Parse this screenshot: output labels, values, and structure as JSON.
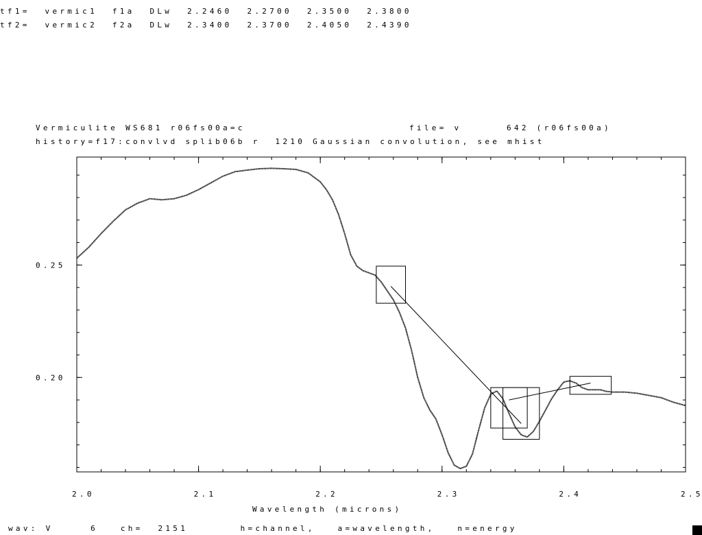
{
  "header": {
    "line1": "tf1=  vermic1  f1a  DLw  2.2460  2.2700  2.3500  2.3800",
    "line2": "tf2=  vermic2  f2a  DLw  2.3400  2.3700  2.4050  2.4390"
  },
  "title": {
    "left": "Vermiculite WS681 r06fs00a=c",
    "right": "file= v      642 (r06fs00a)",
    "history": "history=f17:convlvd splib06b r  1210 Gaussian convolution, see mhist"
  },
  "status_bar": {
    "text": "wav: V     6   ch=  2151       h=channel,   a=wavelength,   n=energy"
  },
  "chart_data": {
    "type": "line",
    "xlabel": "Wavelength (microns)",
    "ylabel": "",
    "xlim": [
      2.0,
      2.5
    ],
    "ylim": [
      0.158,
      0.298
    ],
    "xticks": [
      2.0,
      2.1,
      2.2,
      2.3,
      2.4,
      2.5
    ],
    "xtick_labels": [
      "2.0",
      "2.1",
      "2.2",
      "2.3",
      "2.4",
      "2.5"
    ],
    "yticks": [
      0.2,
      0.25
    ],
    "ytick_labels": [
      "0.20",
      "0.25"
    ],
    "grid": false,
    "series": [
      {
        "x": [
          2.0,
          2.01,
          2.02,
          2.03,
          2.04,
          2.05,
          2.06,
          2.07,
          2.08,
          2.09,
          2.1,
          2.11,
          2.12,
          2.13,
          2.14,
          2.15,
          2.16,
          2.17,
          2.18,
          2.19,
          2.2,
          2.205,
          2.21,
          2.215,
          2.22,
          2.225,
          2.23,
          2.235,
          2.24,
          2.245,
          2.25,
          2.255,
          2.26,
          2.265,
          2.27,
          2.275,
          2.28,
          2.285,
          2.29,
          2.295,
          2.3,
          2.305,
          2.31,
          2.315,
          2.32,
          2.325,
          2.33,
          2.335,
          2.34,
          2.345,
          2.35,
          2.355,
          2.36,
          2.365,
          2.37,
          2.375,
          2.38,
          2.385,
          2.39,
          2.395,
          2.4,
          2.405,
          2.41,
          2.415,
          2.42,
          2.425,
          2.43,
          2.435,
          2.44,
          2.45,
          2.46,
          2.47,
          2.48,
          2.49,
          2.5
        ],
        "y": [
          0.253,
          0.258,
          0.264,
          0.2695,
          0.2745,
          0.2775,
          0.2795,
          0.279,
          0.2795,
          0.281,
          0.2835,
          0.2865,
          0.2895,
          0.2915,
          0.2922,
          0.2928,
          0.293,
          0.2928,
          0.2925,
          0.291,
          0.287,
          0.2835,
          0.279,
          0.2725,
          0.264,
          0.2545,
          0.2495,
          0.2475,
          0.2465,
          0.2455,
          0.2425,
          0.2385,
          0.2345,
          0.229,
          0.222,
          0.212,
          0.2,
          0.191,
          0.1855,
          0.1815,
          0.1745,
          0.1665,
          0.161,
          0.1595,
          0.1605,
          0.166,
          0.1765,
          0.1865,
          0.1925,
          0.194,
          0.1905,
          0.184,
          0.178,
          0.1745,
          0.1735,
          0.176,
          0.1805,
          0.1855,
          0.1905,
          0.1945,
          0.198,
          0.1985,
          0.1975,
          0.1955,
          0.1945,
          0.1945,
          0.1945,
          0.1938,
          0.1935,
          0.1935,
          0.193,
          0.192,
          0.191,
          0.189,
          0.1875
        ]
      }
    ],
    "feature_boxes": [
      {
        "x0": 2.246,
        "x1": 2.27,
        "y0": 0.233,
        "y1": 0.2495
      },
      {
        "x0": 2.34,
        "x1": 2.37,
        "y0": 0.1775,
        "y1": 0.1955
      },
      {
        "x0": 2.35,
        "x1": 2.38,
        "y0": 0.1725,
        "y1": 0.1955
      },
      {
        "x0": 2.405,
        "x1": 2.439,
        "y0": 0.1925,
        "y1": 0.2005
      }
    ],
    "continuum_lines": [
      {
        "x": [
          2.258,
          2.365
        ],
        "y": [
          0.2405,
          0.1795
        ]
      },
      {
        "x": [
          2.355,
          2.422
        ],
        "y": [
          0.19,
          0.1975
        ]
      }
    ]
  }
}
